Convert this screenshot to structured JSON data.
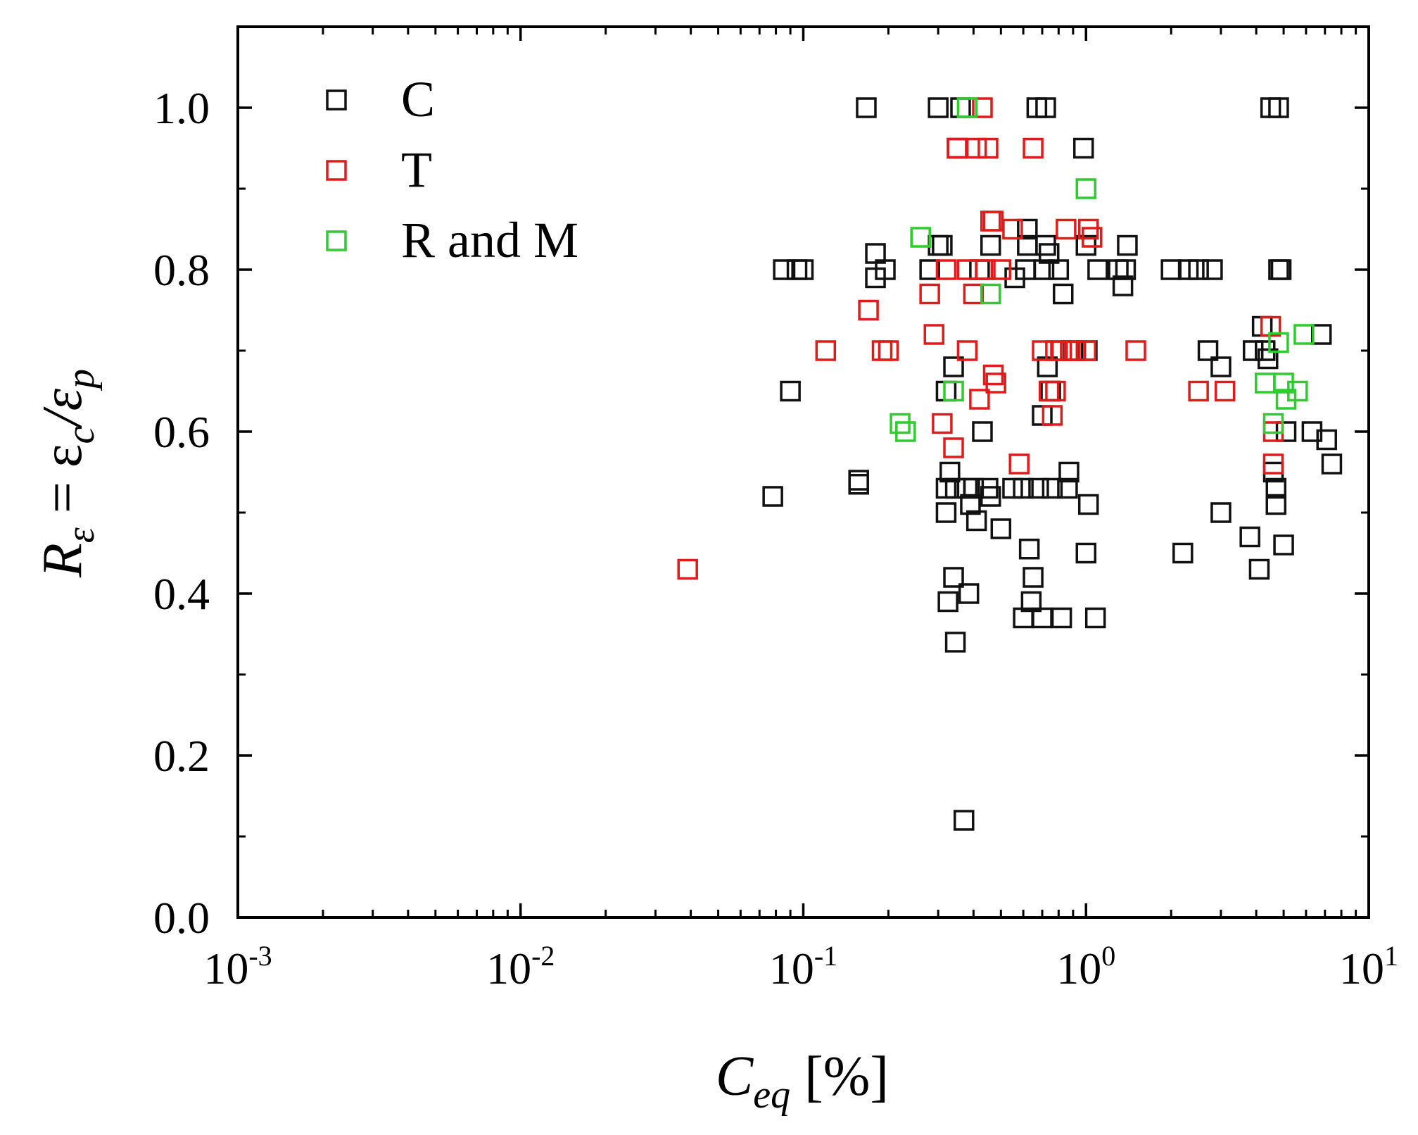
{
  "chart_data": {
    "type": "scatter",
    "title": "",
    "x_scale": "log",
    "xlim": [
      0.001,
      10
    ],
    "ylim": [
      0.0,
      1.1
    ],
    "grid": false,
    "legend_placement": "top-left",
    "xlabel": {
      "main": "C",
      "sub": "eq",
      "rest": " [%]"
    },
    "ylabel": {
      "main": "R",
      "sub": "ε",
      "rest": " = ε",
      "sub2": "c",
      "rest2": "/ε",
      "sub3": "p"
    },
    "x_ticks": [
      {
        "value": 0.001,
        "base": "10",
        "exp": "-3"
      },
      {
        "value": 0.01,
        "base": "10",
        "exp": "-2"
      },
      {
        "value": 0.1,
        "base": "10",
        "exp": "-1"
      },
      {
        "value": 1,
        "base": "10",
        "exp": "0"
      },
      {
        "value": 10,
        "base": "10",
        "exp": "1"
      }
    ],
    "y_ticks": [
      {
        "value": 0.0,
        "label": "0.0"
      },
      {
        "value": 0.2,
        "label": "0.2"
      },
      {
        "value": 0.4,
        "label": "0.4"
      },
      {
        "value": 0.6,
        "label": "0.6"
      },
      {
        "value": 0.8,
        "label": "0.8"
      },
      {
        "value": 1.0,
        "label": "1.0"
      }
    ],
    "series": [
      {
        "name": "C",
        "color": "#111111",
        "marker": "open-square",
        "points": [
          [
            0.078,
            0.52
          ],
          [
            0.085,
            0.8
          ],
          [
            0.09,
            0.65
          ],
          [
            0.095,
            0.8
          ],
          [
            0.1,
            0.8
          ],
          [
            0.157,
            0.535
          ],
          [
            0.157,
            0.54
          ],
          [
            0.167,
            1.0
          ],
          [
            0.18,
            0.82
          ],
          [
            0.18,
            0.79
          ],
          [
            0.195,
            0.8
          ],
          [
            0.28,
            0.8
          ],
          [
            0.3,
            1.0
          ],
          [
            0.3,
            0.83
          ],
          [
            0.31,
            0.83
          ],
          [
            0.32,
            0.65
          ],
          [
            0.32,
            0.53
          ],
          [
            0.32,
            0.5
          ],
          [
            0.325,
            0.39
          ],
          [
            0.33,
            0.55
          ],
          [
            0.34,
            0.68
          ],
          [
            0.34,
            0.42
          ],
          [
            0.345,
            0.53
          ],
          [
            0.345,
            0.34
          ],
          [
            0.35,
            0.95
          ],
          [
            0.36,
            1.0
          ],
          [
            0.37,
            0.12
          ],
          [
            0.38,
            0.53
          ],
          [
            0.385,
            0.4
          ],
          [
            0.39,
            0.51
          ],
          [
            0.4,
            0.53
          ],
          [
            0.41,
            0.49
          ],
          [
            0.42,
            0.8
          ],
          [
            0.43,
            0.6
          ],
          [
            0.45,
            0.53
          ],
          [
            0.46,
            0.83
          ],
          [
            0.46,
            0.52
          ],
          [
            0.5,
            0.48
          ],
          [
            0.55,
            0.53
          ],
          [
            0.56,
            0.79
          ],
          [
            0.6,
            0.37
          ],
          [
            0.6,
            0.53
          ],
          [
            0.61,
            0.8
          ],
          [
            0.62,
            0.85
          ],
          [
            0.62,
            0.83
          ],
          [
            0.63,
            0.455
          ],
          [
            0.64,
            0.39
          ],
          [
            0.65,
            0.42
          ],
          [
            0.67,
            1.0
          ],
          [
            0.68,
            0.53
          ],
          [
            0.7,
            0.37
          ],
          [
            0.7,
            0.62
          ],
          [
            0.71,
            0.8
          ],
          [
            0.72,
            0.83
          ],
          [
            0.72,
            1.0
          ],
          [
            0.73,
            0.68
          ],
          [
            0.74,
            0.82
          ],
          [
            0.75,
            0.65
          ],
          [
            0.76,
            0.53
          ],
          [
            0.8,
            0.8
          ],
          [
            0.82,
            0.37
          ],
          [
            0.83,
            0.77
          ],
          [
            0.86,
            0.53
          ],
          [
            0.87,
            0.55
          ],
          [
            0.9,
            0.7
          ],
          [
            0.98,
            0.95
          ],
          [
            1.0,
            0.45
          ],
          [
            1.0,
            0.83
          ],
          [
            1.01,
            0.7
          ],
          [
            1.02,
            0.51
          ],
          [
            1.08,
            0.37
          ],
          [
            1.1,
            0.8
          ],
          [
            1.3,
            0.8
          ],
          [
            1.35,
            0.78
          ],
          [
            1.38,
            0.8
          ],
          [
            1.4,
            0.83
          ],
          [
            2.0,
            0.8
          ],
          [
            2.2,
            0.45
          ],
          [
            2.3,
            0.8
          ],
          [
            2.5,
            0.8
          ],
          [
            2.7,
            0.7
          ],
          [
            2.8,
            0.8
          ],
          [
            3.0,
            0.68
          ],
          [
            3.0,
            0.5
          ],
          [
            3.8,
            0.47
          ],
          [
            3.9,
            0.7
          ],
          [
            4.1,
            0.43
          ],
          [
            4.2,
            0.73
          ],
          [
            4.3,
            0.7
          ],
          [
            4.4,
            0.69
          ],
          [
            4.5,
            1.0
          ],
          [
            4.6,
            0.55
          ],
          [
            4.7,
            0.53
          ],
          [
            4.7,
            0.51
          ],
          [
            4.8,
            1.0
          ],
          [
            4.8,
            0.8
          ],
          [
            4.9,
            0.8
          ],
          [
            5.0,
            0.46
          ],
          [
            5.1,
            0.6
          ],
          [
            6.3,
            0.6
          ],
          [
            6.8,
            0.72
          ],
          [
            7.1,
            0.59
          ],
          [
            7.4,
            0.56
          ]
        ]
      },
      {
        "name": "T",
        "color": "#e01b1b",
        "marker": "open-square",
        "points": [
          [
            0.039,
            0.43
          ],
          [
            0.12,
            0.7
          ],
          [
            0.17,
            0.75
          ],
          [
            0.19,
            0.7
          ],
          [
            0.2,
            0.7
          ],
          [
            0.28,
            0.77
          ],
          [
            0.29,
            0.72
          ],
          [
            0.31,
            0.61
          ],
          [
            0.32,
            0.8
          ],
          [
            0.34,
            0.58
          ],
          [
            0.35,
            0.95
          ],
          [
            0.38,
            0.7
          ],
          [
            0.38,
            0.8
          ],
          [
            0.4,
            0.77
          ],
          [
            0.41,
            0.95
          ],
          [
            0.42,
            0.64
          ],
          [
            0.43,
            1.0
          ],
          [
            0.44,
            0.8
          ],
          [
            0.45,
            0.95
          ],
          [
            0.46,
            0.86
          ],
          [
            0.47,
            0.86
          ],
          [
            0.47,
            0.67
          ],
          [
            0.48,
            0.66
          ],
          [
            0.5,
            0.8
          ],
          [
            0.55,
            0.85
          ],
          [
            0.58,
            0.56
          ],
          [
            0.65,
            0.95
          ],
          [
            0.7,
            0.7
          ],
          [
            0.74,
            0.65
          ],
          [
            0.76,
            0.62
          ],
          [
            0.78,
            0.65
          ],
          [
            0.78,
            0.7
          ],
          [
            0.82,
            0.7
          ],
          [
            0.85,
            0.85
          ],
          [
            0.88,
            0.7
          ],
          [
            0.92,
            0.7
          ],
          [
            1.0,
            0.7
          ],
          [
            1.02,
            0.85
          ],
          [
            1.05,
            0.84
          ],
          [
            1.5,
            0.7
          ],
          [
            2.5,
            0.65
          ],
          [
            3.1,
            0.65
          ],
          [
            4.5,
            0.73
          ],
          [
            4.6,
            0.6
          ],
          [
            4.6,
            0.56
          ]
        ]
      },
      {
        "name": "R and M",
        "color": "#2ecc2e",
        "marker": "open-square",
        "points": [
          [
            0.22,
            0.61
          ],
          [
            0.23,
            0.6
          ],
          [
            0.26,
            0.84
          ],
          [
            0.34,
            0.65
          ],
          [
            0.38,
            1.0
          ],
          [
            0.46,
            0.77
          ],
          [
            1.0,
            0.9
          ],
          [
            4.3,
            0.66
          ],
          [
            4.6,
            0.61
          ],
          [
            4.8,
            0.71
          ],
          [
            5.0,
            0.66
          ],
          [
            5.1,
            0.64
          ],
          [
            5.6,
            0.65
          ],
          [
            5.9,
            0.72
          ]
        ]
      }
    ]
  }
}
